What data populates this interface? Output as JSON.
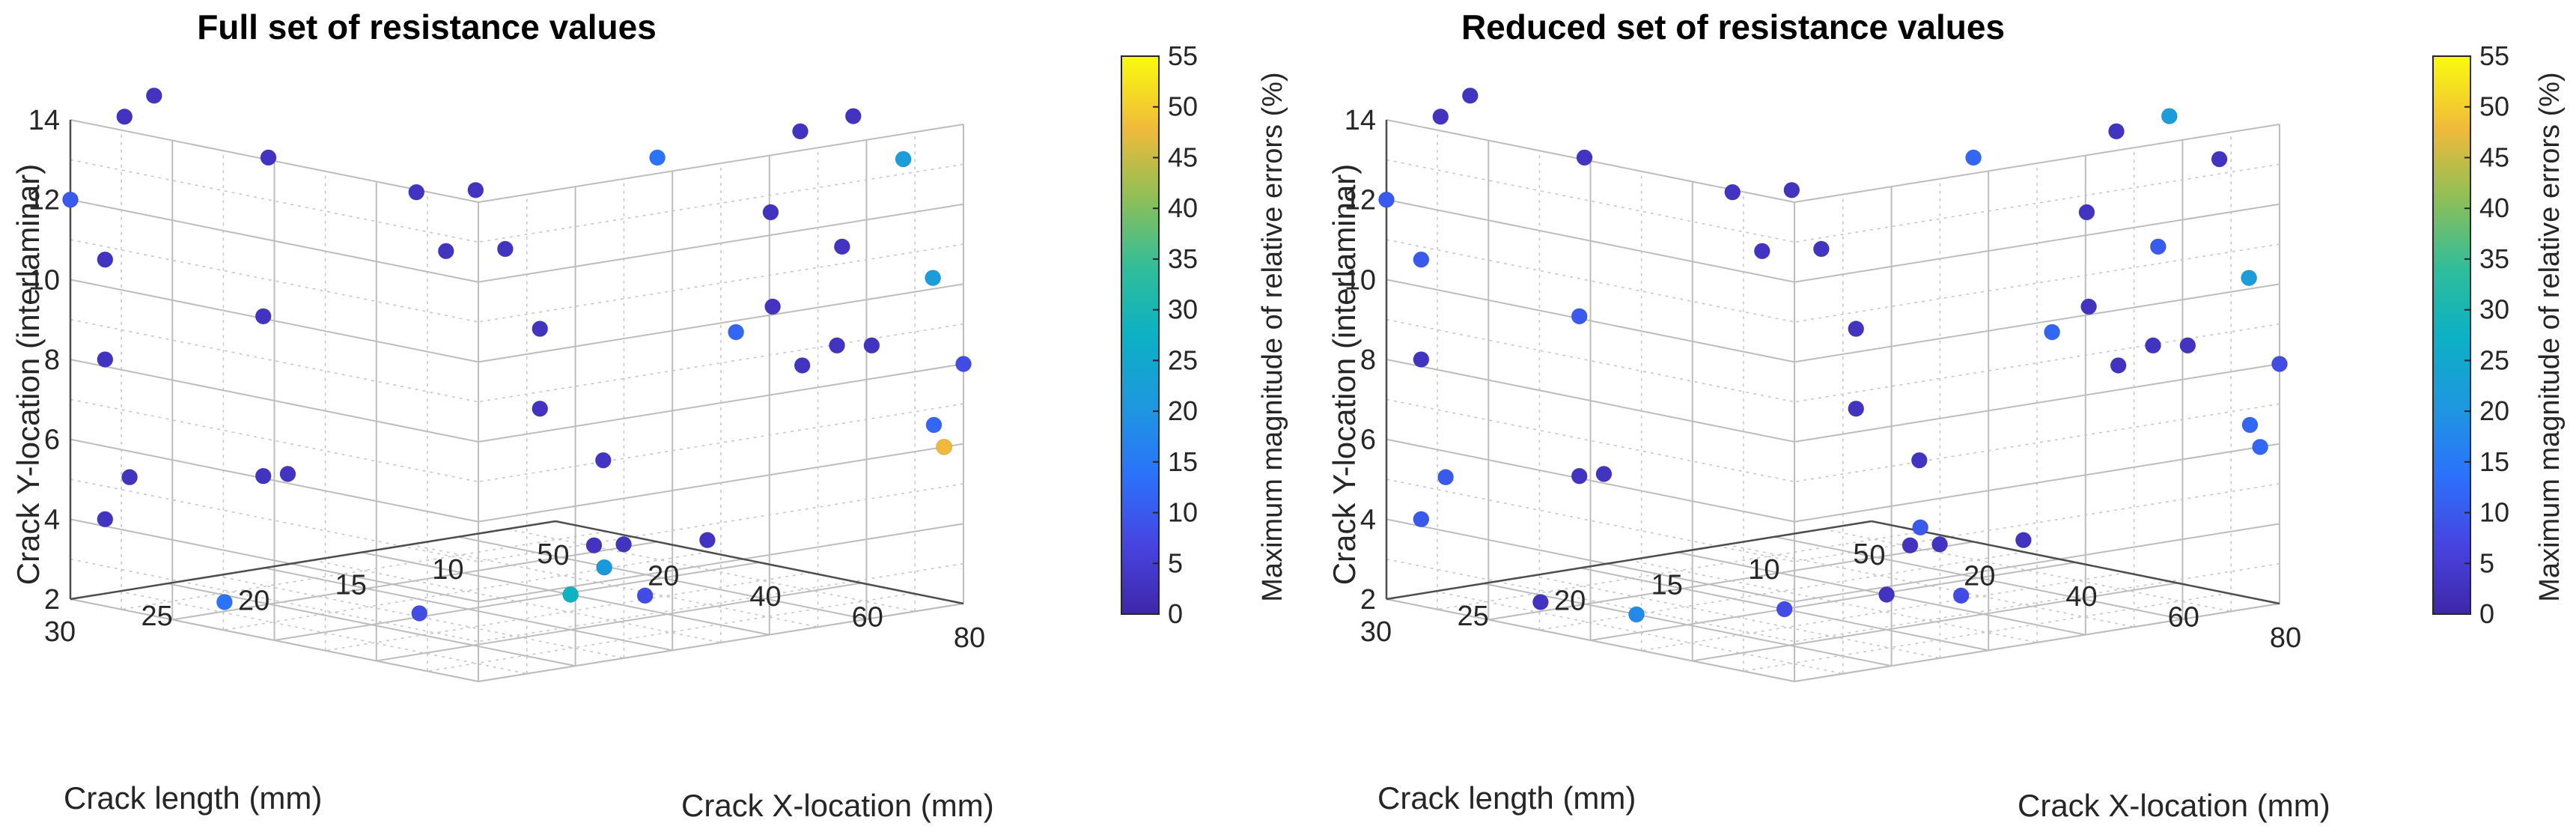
{
  "chart_data": [
    {
      "type": "scatter",
      "title": "Full set of resistance values",
      "xlabel": "Crack X-location (mm)",
      "ylabel": "Crack length (mm)",
      "zlabel": "Crack Y-location (interlaminar)",
      "colorbar_label": "Maximum magnitude of relative errors (%)",
      "xlim": [
        0,
        80
      ],
      "ylim": [
        5,
        30
      ],
      "zlim": [
        2,
        14
      ],
      "clim": [
        0,
        55
      ],
      "xticks": [
        "0",
        "20",
        "40",
        "60",
        "80"
      ],
      "yticks": [
        "5",
        "10",
        "15",
        "20",
        "25",
        "30"
      ],
      "zticks": [
        "2",
        "4",
        "6",
        "8",
        "10",
        "12",
        "14"
      ],
      "cticks": [
        "0",
        "5",
        "10",
        "15",
        "20",
        "25",
        "30",
        "35",
        "40",
        "45",
        "50",
        "55"
      ],
      "points": [
        {
          "x": 0,
          "y": 30,
          "z": 12,
          "c": 10
        },
        {
          "x": 3,
          "y": 28,
          "z": 14,
          "c": 3
        },
        {
          "x": 5,
          "y": 27,
          "z": 14.5,
          "c": 3
        },
        {
          "x": 3,
          "y": 29,
          "z": 10.5,
          "c": 3
        },
        {
          "x": 3,
          "y": 29,
          "z": 8,
          "c": 3
        },
        {
          "x": 3,
          "y": 29,
          "z": 4,
          "c": 3
        },
        {
          "x": 4,
          "y": 28,
          "z": 5,
          "c": 3
        },
        {
          "x": 16,
          "y": 24,
          "z": 13,
          "c": 3
        },
        {
          "x": 15,
          "y": 24,
          "z": 9,
          "c": 3
        },
        {
          "x": 15,
          "y": 24,
          "z": 5,
          "c": 3
        },
        {
          "x": 16,
          "y": 23,
          "z": 5,
          "c": 3
        },
        {
          "x": 15,
          "y": 26,
          "z": 2,
          "c": 14
        },
        {
          "x": 26,
          "y": 19,
          "z": 12,
          "c": 3
        },
        {
          "x": 28,
          "y": 18,
          "z": 10.5,
          "c": 3
        },
        {
          "x": 30,
          "y": 17,
          "z": 12,
          "c": 3
        },
        {
          "x": 32,
          "y": 16,
          "z": 10.5,
          "c": 3
        },
        {
          "x": 35,
          "y": 15,
          "z": 8.5,
          "c": 3
        },
        {
          "x": 35,
          "y": 15,
          "z": 6.5,
          "c": 3
        },
        {
          "x": 39,
          "y": 10,
          "z": 12.5,
          "c": 14
        },
        {
          "x": 43,
          "y": 7,
          "z": 8,
          "c": 12
        },
        {
          "x": 48,
          "y": 5,
          "z": 13,
          "c": 3
        },
        {
          "x": 46,
          "y": 6,
          "z": 11,
          "c": 3
        },
        {
          "x": 36,
          "y": 12,
          "z": 5,
          "c": 3
        },
        {
          "x": 45,
          "y": 9,
          "z": 3,
          "c": 3
        },
        {
          "x": 54,
          "y": 8,
          "z": 9,
          "c": 3
        },
        {
          "x": 60,
          "y": 6,
          "z": 10.5,
          "c": 3
        },
        {
          "x": 56,
          "y": 7,
          "z": 7.5,
          "c": 3
        },
        {
          "x": 59,
          "y": 6,
          "z": 8,
          "c": 3
        },
        {
          "x": 62,
          "y": 5,
          "z": 8,
          "c": 3
        },
        {
          "x": 38,
          "y": 13,
          "z": 3,
          "c": 3
        },
        {
          "x": 40,
          "y": 12,
          "z": 3,
          "c": 3
        },
        {
          "x": 40,
          "y": 13,
          "z": 2.5,
          "c": 21
        },
        {
          "x": 41,
          "y": 15,
          "z": 2,
          "c": 28
        },
        {
          "x": 48,
          "y": 13,
          "z": 2,
          "c": 8
        },
        {
          "x": 38,
          "y": 22,
          "z": 2,
          "c": 8
        },
        {
          "x": 66,
          "y": 7,
          "z": 14,
          "c": 3
        },
        {
          "x": 72,
          "y": 6,
          "z": 13,
          "c": 22
        },
        {
          "x": 74,
          "y": 5,
          "z": 10,
          "c": 22
        },
        {
          "x": 80,
          "y": 5,
          "z": 8,
          "c": 8
        },
        {
          "x": 78,
          "y": 6,
          "z": 6.5,
          "c": 12
        },
        {
          "x": 80,
          "y": 6,
          "z": 6,
          "c": 48
        }
      ]
    },
    {
      "type": "scatter",
      "title": "Reduced set of resistance values",
      "xlabel": "Crack X-location (mm)",
      "ylabel": "Crack length (mm)",
      "zlabel": "Crack Y-location (interlaminar)",
      "colorbar_label": "Maximum magnitude of relative errors (%)",
      "xlim": [
        0,
        80
      ],
      "ylim": [
        5,
        30
      ],
      "zlim": [
        2,
        14
      ],
      "clim": [
        0,
        55
      ],
      "xticks": [
        "0",
        "20",
        "40",
        "60",
        "80"
      ],
      "yticks": [
        "5",
        "10",
        "15",
        "20",
        "25",
        "30"
      ],
      "zticks": [
        "2",
        "4",
        "6",
        "8",
        "10",
        "12",
        "14"
      ],
      "cticks": [
        "0",
        "5",
        "10",
        "15",
        "20",
        "25",
        "30",
        "35",
        "40",
        "45",
        "50",
        "55"
      ],
      "points": [
        {
          "x": 0,
          "y": 30,
          "z": 12,
          "c": 10
        },
        {
          "x": 3,
          "y": 28,
          "z": 14,
          "c": 3
        },
        {
          "x": 5,
          "y": 27,
          "z": 14.5,
          "c": 3
        },
        {
          "x": 3,
          "y": 29,
          "z": 10.5,
          "c": 10
        },
        {
          "x": 3,
          "y": 29,
          "z": 8,
          "c": 3
        },
        {
          "x": 3,
          "y": 29,
          "z": 4,
          "c": 10
        },
        {
          "x": 4,
          "y": 28,
          "z": 5,
          "c": 10
        },
        {
          "x": 16,
          "y": 24,
          "z": 13,
          "c": 3
        },
        {
          "x": 15,
          "y": 24,
          "z": 9,
          "c": 10
        },
        {
          "x": 15,
          "y": 24,
          "z": 5,
          "c": 3
        },
        {
          "x": 16,
          "y": 23,
          "z": 5,
          "c": 3
        },
        {
          "x": 15,
          "y": 26,
          "z": 2,
          "c": 3
        },
        {
          "x": 26,
          "y": 19,
          "z": 12,
          "c": 3
        },
        {
          "x": 28,
          "y": 18,
          "z": 10.5,
          "c": 3
        },
        {
          "x": 30,
          "y": 17,
          "z": 12,
          "c": 3
        },
        {
          "x": 32,
          "y": 16,
          "z": 10.5,
          "c": 3
        },
        {
          "x": 35,
          "y": 15,
          "z": 8.5,
          "c": 3
        },
        {
          "x": 35,
          "y": 15,
          "z": 6.5,
          "c": 3
        },
        {
          "x": 39,
          "y": 10,
          "z": 12.5,
          "c": 12
        },
        {
          "x": 43,
          "y": 7,
          "z": 8,
          "c": 12
        },
        {
          "x": 48,
          "y": 5,
          "z": 13,
          "c": 3
        },
        {
          "x": 46,
          "y": 6,
          "z": 11,
          "c": 3
        },
        {
          "x": 36,
          "y": 12,
          "z": 5,
          "c": 3
        },
        {
          "x": 45,
          "y": 9,
          "z": 3,
          "c": 3
        },
        {
          "x": 54,
          "y": 8,
          "z": 9,
          "c": 3
        },
        {
          "x": 60,
          "y": 6,
          "z": 10.5,
          "c": 10
        },
        {
          "x": 56,
          "y": 7,
          "z": 7.5,
          "c": 3
        },
        {
          "x": 59,
          "y": 6,
          "z": 8,
          "c": 3
        },
        {
          "x": 62,
          "y": 5,
          "z": 8,
          "c": 3
        },
        {
          "x": 38,
          "y": 13,
          "z": 3,
          "c": 3
        },
        {
          "x": 40,
          "y": 12,
          "z": 3,
          "c": 3
        },
        {
          "x": 40,
          "y": 13,
          "z": 3.5,
          "c": 10
        },
        {
          "x": 41,
          "y": 15,
          "z": 2,
          "c": 3
        },
        {
          "x": 48,
          "y": 13,
          "z": 2,
          "c": 8
        },
        {
          "x": 40,
          "y": 20,
          "z": 2,
          "c": 8
        },
        {
          "x": 30,
          "y": 25,
          "z": 2,
          "c": 18
        },
        {
          "x": 66,
          "y": 7,
          "z": 14,
          "c": 22
        },
        {
          "x": 72,
          "y": 6,
          "z": 13,
          "c": 3
        },
        {
          "x": 74,
          "y": 5,
          "z": 10,
          "c": 22
        },
        {
          "x": 80,
          "y": 5,
          "z": 8,
          "c": 8
        },
        {
          "x": 78,
          "y": 6,
          "z": 6.5,
          "c": 12
        },
        {
          "x": 80,
          "y": 6,
          "z": 6,
          "c": 12
        }
      ]
    }
  ]
}
